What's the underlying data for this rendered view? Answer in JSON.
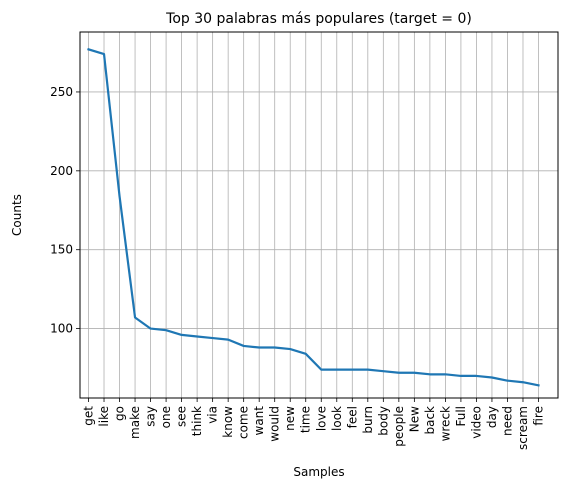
{
  "chart_data": {
    "type": "line",
    "title": "Top 30 palabras más populares (target = 0)",
    "xlabel": "Samples",
    "ylabel": "Counts",
    "categories": [
      "get",
      "like",
      "go",
      "make",
      "say",
      "one",
      "see",
      "think",
      "via",
      "know",
      "come",
      "want",
      "would",
      "new",
      "time",
      "love",
      "look",
      "feel",
      "burn",
      "body",
      "people",
      "New",
      "back",
      "wreck",
      "Full",
      "video",
      "day",
      "need",
      "scream",
      "fire"
    ],
    "values": [
      277,
      274,
      184,
      107,
      100,
      99,
      96,
      95,
      94,
      93,
      89,
      88,
      88,
      87,
      84,
      74,
      74,
      74,
      74,
      73,
      72,
      72,
      71,
      71,
      70,
      70,
      69,
      67,
      66,
      64
    ],
    "ylim": [
      56,
      288
    ],
    "yticks": [
      100,
      150,
      200,
      250
    ],
    "grid": true,
    "line_color": "#1f77b4",
    "grid_color": "#b0b0b0"
  }
}
